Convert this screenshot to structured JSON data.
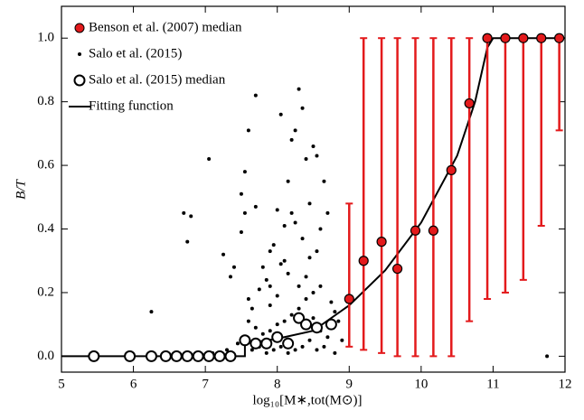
{
  "chart_data": {
    "type": "scatter",
    "xlabel": "log₁₀[M∗,tot(M⊙)]",
    "ylabel": "B/T",
    "xlim": [
      5,
      12
    ],
    "ylim": [
      -0.05,
      1.1
    ],
    "xticks": [
      5,
      6,
      7,
      8,
      9,
      10,
      11,
      12
    ],
    "yticks": [
      {
        "value": 0,
        "label": "0.0"
      },
      0.2,
      0.4,
      0.6,
      0.8,
      {
        "value": 1,
        "label": "1.0"
      }
    ],
    "legend": "upper-left",
    "series": [
      {
        "name": "Benson et al. (2007) median",
        "style": "errorbar",
        "color": "#e31a1c",
        "x": [
          9.0,
          9.2,
          9.45,
          9.67,
          9.92,
          10.17,
          10.42,
          10.67,
          10.92,
          11.17,
          11.42,
          11.67,
          11.92
        ],
        "y": [
          0.18,
          0.3,
          0.36,
          0.275,
          0.395,
          0.395,
          0.585,
          0.795,
          1.0,
          1.0,
          1.0,
          1.0,
          1.0
        ],
        "lower": [
          0.03,
          0.02,
          0.01,
          0.0,
          0.0,
          0.0,
          0.0,
          0.11,
          0.18,
          0.2,
          0.24,
          0.41,
          0.71
        ],
        "upper": [
          0.48,
          1.0,
          1.0,
          1.0,
          1.0,
          1.0,
          1.0,
          1.0,
          1.0,
          1.0,
          1.0,
          1.0,
          1.0
        ]
      },
      {
        "name": "Salo et al. (2015)",
        "style": "dot",
        "color": "#000000",
        "x": [
          6.25,
          6.7,
          6.75,
          6.8,
          7.05,
          7.25,
          7.35,
          7.4,
          7.5,
          7.55,
          7.5,
          7.6,
          7.7,
          7.8,
          7.85,
          7.9,
          7.95,
          8.0,
          8.05,
          8.05,
          8.1,
          8.15,
          8.2,
          8.25,
          8.3,
          8.35,
          8.4,
          8.5,
          8.55,
          8.6,
          8.55,
          8.45,
          8.4,
          8.3,
          8.35,
          8.25,
          8.2,
          8.1,
          8.0,
          7.9,
          7.75,
          7.65,
          7.6,
          7.55,
          7.7,
          8.6,
          8.65,
          8.7,
          8.75,
          8.8,
          8.5,
          8.4,
          8.3,
          8.2,
          8.1,
          8.0,
          7.9,
          7.8,
          7.7,
          8.5,
          8.6,
          8.7,
          8.45,
          8.35,
          8.25,
          8.15,
          8.05,
          7.95,
          7.85,
          7.75,
          7.65,
          8.55,
          8.65,
          8.8,
          7.3,
          7.1,
          6.9,
          11.75,
          8.9,
          8.85,
          7.45,
          7.9,
          8.15,
          8.45,
          7.6
        ],
        "y": [
          0.14,
          0.45,
          0.36,
          0.44,
          0.62,
          0.32,
          0.25,
          0.28,
          0.51,
          0.58,
          0.39,
          0.71,
          0.82,
          0.28,
          0.24,
          0.22,
          0.35,
          0.46,
          0.29,
          0.76,
          0.3,
          0.55,
          0.68,
          0.71,
          0.84,
          0.78,
          0.62,
          0.66,
          0.63,
          0.4,
          0.33,
          0.31,
          0.25,
          0.22,
          0.37,
          0.42,
          0.45,
          0.41,
          0.19,
          0.16,
          0.21,
          0.15,
          0.11,
          0.45,
          0.47,
          0.22,
          0.55,
          0.45,
          0.17,
          0.14,
          0.2,
          0.18,
          0.15,
          0.13,
          0.11,
          0.1,
          0.08,
          0.07,
          0.09,
          0.12,
          0.08,
          0.06,
          0.05,
          0.03,
          0.02,
          0.01,
          0.03,
          0.02,
          0.01,
          0.03,
          0.02,
          0.02,
          0.03,
          0.01,
          0.02,
          0.01,
          0.0,
          0.0,
          0.05,
          0.11,
          0.04,
          0.33,
          0.26,
          0.48,
          0.18
        ]
      },
      {
        "name": "Salo et al. (2015) median",
        "style": "open",
        "color": "#000000",
        "x": [
          5.45,
          5.95,
          6.25,
          6.45,
          6.6,
          6.75,
          6.9,
          7.05,
          7.2,
          7.35,
          7.55,
          7.7,
          7.85,
          8.0,
          8.15,
          8.3,
          8.4,
          8.55,
          8.75
        ],
        "y": [
          0.0,
          0.0,
          0.0,
          0.0,
          0.0,
          0.0,
          0.0,
          0.0,
          0.0,
          0.0,
          0.05,
          0.04,
          0.04,
          0.06,
          0.04,
          0.12,
          0.1,
          0.09,
          0.1
        ]
      },
      {
        "name": "Fitting function",
        "style": "line",
        "color": "#000000",
        "x": [
          5,
          7.55,
          7.55,
          8,
          8.5,
          9,
          9.5,
          10,
          10.5,
          10.75,
          10.92,
          11,
          12
        ],
        "y": [
          0,
          0,
          0.04,
          0.055,
          0.08,
          0.16,
          0.27,
          0.42,
          0.63,
          0.8,
          0.97,
          1.0,
          1.0
        ]
      }
    ]
  }
}
